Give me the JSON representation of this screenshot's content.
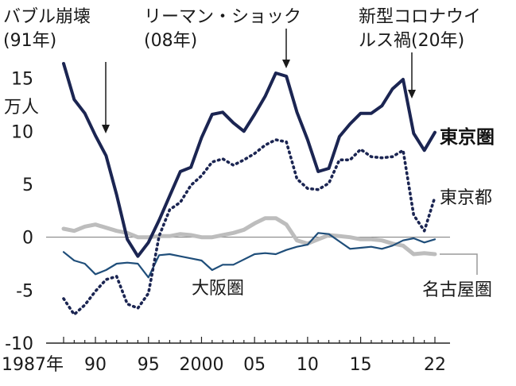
{
  "chart_data": {
    "type": "line",
    "unit": "万人",
    "ylim": [
      -10,
      17
    ],
    "y_ticks": [
      "15",
      "10",
      "5",
      "0",
      "-5",
      "-10"
    ],
    "x_tick_labels": [
      "1987年",
      "90",
      "95",
      "2000",
      "05",
      "10",
      "15",
      "22"
    ],
    "x": [
      1987,
      1988,
      1989,
      1990,
      1991,
      1992,
      1993,
      1994,
      1995,
      1996,
      1997,
      1998,
      1999,
      2000,
      2001,
      2002,
      2003,
      2004,
      2005,
      2006,
      2007,
      2008,
      2009,
      2010,
      2011,
      2012,
      2013,
      2014,
      2015,
      2016,
      2017,
      2018,
      2019,
      2020,
      2021,
      2022
    ],
    "series": [
      {
        "name": "東京圏",
        "label": "東京圏",
        "color": "#1b2552",
        "style": "solid",
        "values": [
          16.4,
          13.0,
          11.7,
          9.6,
          7.7,
          4.0,
          -0.2,
          -1.8,
          -0.5,
          1.6,
          3.9,
          6.2,
          6.6,
          9.4,
          11.6,
          11.8,
          10.8,
          10.0,
          11.6,
          13.3,
          15.5,
          15.2,
          11.8,
          9.2,
          6.2,
          6.5,
          9.5,
          10.7,
          11.7,
          11.7,
          12.4,
          14.0,
          14.9,
          9.8,
          8.2,
          9.9
        ]
      },
      {
        "name": "東京都",
        "label": "東京都",
        "color": "#1b2552",
        "style": "dotted",
        "values": [
          -5.8,
          -7.3,
          -6.4,
          -5.1,
          -4.0,
          -3.7,
          -6.3,
          -6.7,
          -5.3,
          0.1,
          2.6,
          3.3,
          4.9,
          5.8,
          7.1,
          7.4,
          6.8,
          7.3,
          7.9,
          8.7,
          9.2,
          9.0,
          5.5,
          4.6,
          4.5,
          5.1,
          7.3,
          7.3,
          8.3,
          7.6,
          7.5,
          7.6,
          8.2,
          2.1,
          0.6,
          3.8
        ]
      },
      {
        "name": "名古屋圏",
        "label": "名古屋圏",
        "color": "#bdbdbd",
        "style": "solid",
        "values": [
          0.8,
          0.6,
          1.0,
          1.2,
          0.9,
          0.6,
          0.4,
          0.0,
          0.0,
          0.1,
          0.1,
          0.3,
          0.2,
          0.0,
          0.0,
          0.2,
          0.4,
          0.7,
          1.3,
          1.8,
          1.8,
          1.2,
          -0.3,
          -0.6,
          -0.2,
          0.2,
          0.1,
          0.0,
          -0.2,
          -0.2,
          -0.3,
          -0.6,
          -0.8,
          -1.6,
          -1.5,
          -1.6
        ]
      },
      {
        "name": "大阪圏",
        "label": "大阪圏",
        "color": "#1f4e7a",
        "style": "solid",
        "values": [
          -1.4,
          -2.2,
          -2.5,
          -3.5,
          -3.1,
          -2.5,
          -2.4,
          -2.5,
          -3.8,
          -1.7,
          -1.6,
          -1.8,
          -2.0,
          -2.2,
          -3.1,
          -2.6,
          -2.6,
          -2.1,
          -1.6,
          -1.5,
          -1.6,
          -1.2,
          -0.9,
          -0.7,
          0.4,
          0.3,
          -0.4,
          -1.1,
          -1.0,
          -0.9,
          -1.1,
          -0.8,
          -0.3,
          -0.1,
          -0.5,
          -0.2
        ]
      }
    ],
    "annotations": [
      {
        "year": 1991,
        "line1": "バブル崩壊",
        "line2": "(91年)"
      },
      {
        "year": 2008,
        "line1": "リーマン・ショック",
        "line2": "(08年)"
      },
      {
        "year": 2020,
        "line1": "新型コロナウイ",
        "line2": "ルス禍(20年)"
      }
    ]
  }
}
